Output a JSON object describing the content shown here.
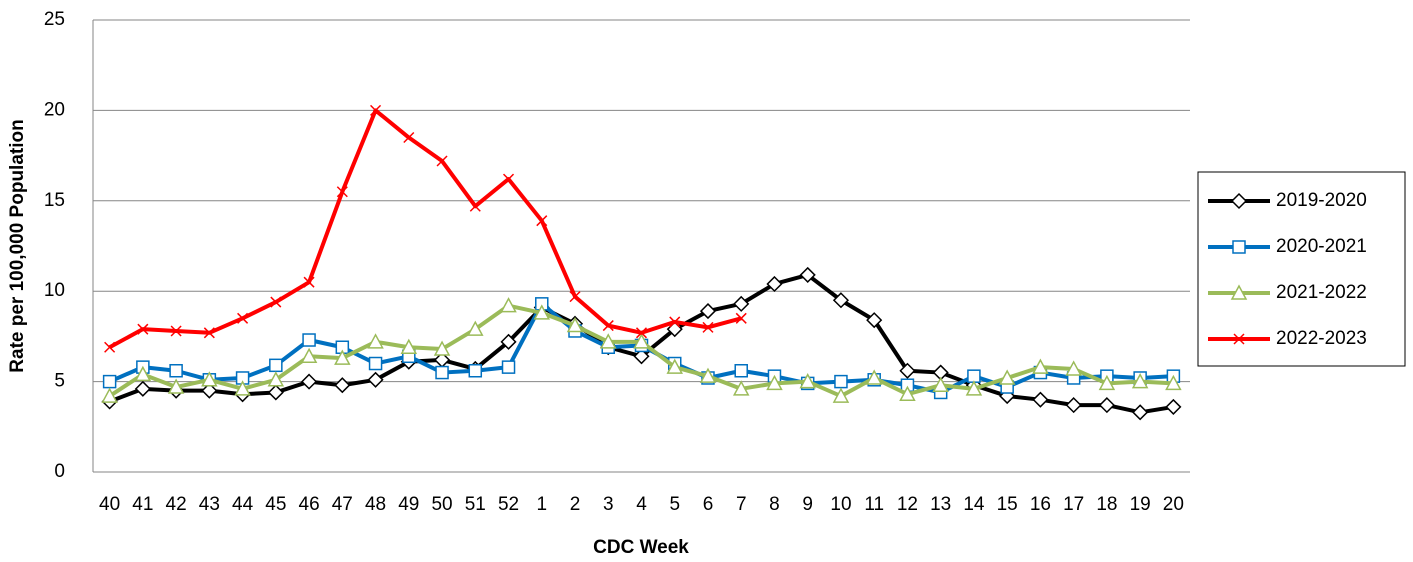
{
  "chart_data": {
    "type": "line",
    "x_label": "CDC Week",
    "y_label": "Rate per 100,000 Population",
    "categories": [
      "40",
      "41",
      "42",
      "43",
      "44",
      "45",
      "46",
      "47",
      "48",
      "49",
      "50",
      "51",
      "52",
      "1",
      "2",
      "3",
      "4",
      "5",
      "6",
      "7",
      "8",
      "9",
      "10",
      "11",
      "12",
      "13",
      "14",
      "15",
      "16",
      "17",
      "18",
      "19",
      "20"
    ],
    "ylim": [
      0,
      25
    ],
    "yticks": [
      0,
      5,
      10,
      15,
      20,
      25
    ],
    "grid": true,
    "legend": "right",
    "series": [
      {
        "name": "2019-2020",
        "color": "#000000",
        "marker": "diamond",
        "values": [
          3.9,
          4.6,
          4.5,
          4.5,
          4.3,
          4.4,
          5.0,
          4.8,
          5.1,
          6.1,
          6.2,
          5.7,
          7.2,
          9.1,
          8.2,
          6.9,
          6.4,
          7.9,
          8.9,
          9.3,
          10.4,
          10.9,
          9.5,
          8.4,
          5.6,
          5.5,
          4.8,
          4.2,
          4.0,
          3.7,
          3.7,
          3.3,
          3.6
        ]
      },
      {
        "name": "2020-2021",
        "color": "#0070c0",
        "marker": "square",
        "values": [
          5.0,
          5.8,
          5.6,
          5.1,
          5.2,
          5.9,
          7.3,
          6.9,
          6.0,
          6.4,
          5.5,
          5.6,
          5.8,
          9.3,
          7.8,
          6.9,
          7.0,
          6.0,
          5.2,
          5.6,
          5.3,
          4.9,
          5.0,
          5.1,
          4.8,
          4.4,
          5.3,
          4.7,
          5.5,
          5.2,
          5.3,
          5.2,
          5.3
        ]
      },
      {
        "name": "2021-2022",
        "color": "#9bbb59",
        "marker": "triangle",
        "values": [
          4.2,
          5.4,
          4.7,
          5.1,
          4.6,
          5.1,
          6.4,
          6.3,
          7.2,
          6.9,
          6.8,
          7.9,
          9.2,
          8.8,
          8.1,
          7.2,
          7.2,
          5.8,
          5.3,
          4.6,
          4.9,
          5.0,
          4.2,
          5.2,
          4.3,
          4.8,
          4.6,
          5.2,
          5.8,
          5.7,
          4.9,
          5.0,
          4.9
        ]
      },
      {
        "name": "2022-2023",
        "color": "#ff0000",
        "marker": "x",
        "values": [
          6.9,
          7.9,
          7.8,
          7.7,
          8.5,
          9.4,
          10.5,
          15.5,
          20.0,
          18.5,
          17.2,
          14.7,
          16.2,
          13.9,
          9.7,
          8.1,
          7.7,
          8.3,
          8.0,
          8.5,
          null,
          null,
          null,
          null,
          null,
          null,
          null,
          null,
          null,
          null,
          null,
          null,
          null
        ]
      }
    ]
  }
}
